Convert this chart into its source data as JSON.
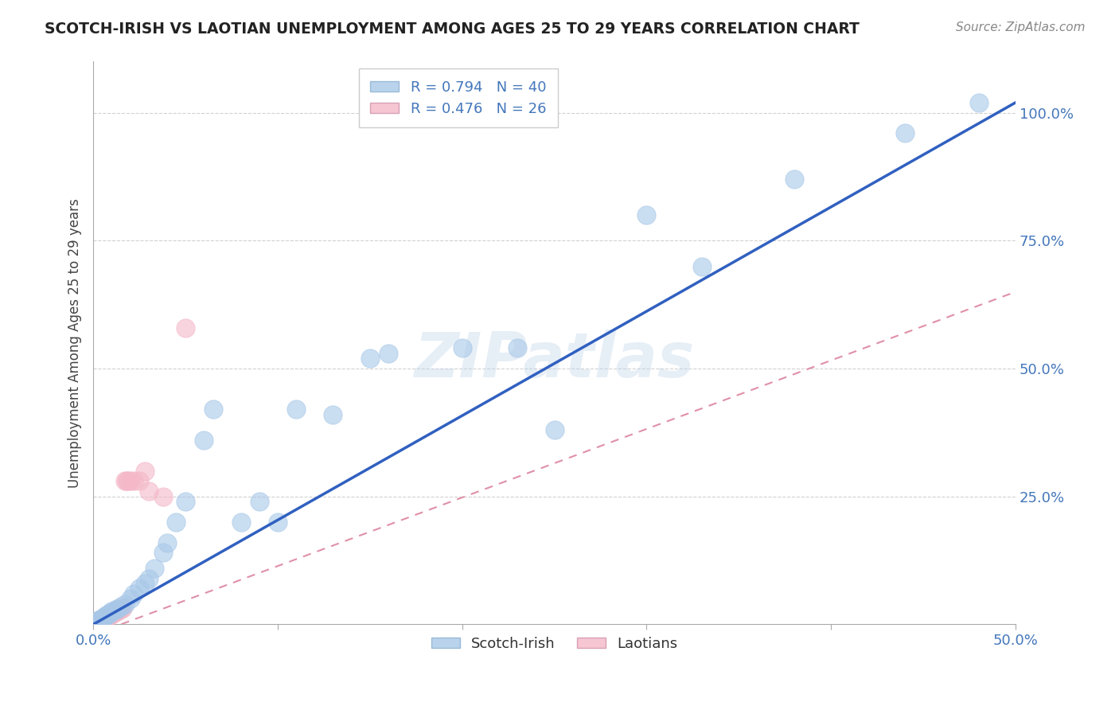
{
  "title": "SCOTCH-IRISH VS LAOTIAN UNEMPLOYMENT AMONG AGES 25 TO 29 YEARS CORRELATION CHART",
  "source": "Source: ZipAtlas.com",
  "xlabel": "",
  "ylabel": "Unemployment Among Ages 25 to 29 years",
  "xlim": [
    0.0,
    0.5
  ],
  "ylim": [
    0.0,
    1.1
  ],
  "xticks": [
    0.0,
    0.1,
    0.2,
    0.3,
    0.4,
    0.5
  ],
  "yticks": [
    0.25,
    0.5,
    0.75,
    1.0
  ],
  "xticklabels_show": [
    "0.0%",
    "50.0%"
  ],
  "xticklabels_pos": [
    0.0,
    0.5
  ],
  "yticklabels": [
    "25.0%",
    "50.0%",
    "75.0%",
    "100.0%"
  ],
  "scotch_irish_R": 0.794,
  "scotch_irish_N": 40,
  "laotian_R": 0.476,
  "laotian_N": 26,
  "scotch_irish_color": "#a8c8e8",
  "laotian_color": "#f4b8c8",
  "scotch_irish_line_color": "#3060c0",
  "laotian_line_color": "#e090a8",
  "watermark": "ZIPatlas",
  "scotch_irish_x": [
    0.002,
    0.003,
    0.004,
    0.005,
    0.006,
    0.007,
    0.008,
    0.009,
    0.01,
    0.012,
    0.013,
    0.015,
    0.017,
    0.02,
    0.022,
    0.025,
    0.028,
    0.03,
    0.033,
    0.038,
    0.04,
    0.045,
    0.05,
    0.06,
    0.065,
    0.08,
    0.09,
    0.1,
    0.11,
    0.13,
    0.15,
    0.16,
    0.2,
    0.23,
    0.25,
    0.3,
    0.33,
    0.38,
    0.44,
    0.48
  ],
  "scotch_irish_y": [
    0.005,
    0.008,
    0.01,
    0.012,
    0.015,
    0.018,
    0.02,
    0.022,
    0.025,
    0.028,
    0.03,
    0.035,
    0.04,
    0.05,
    0.06,
    0.07,
    0.08,
    0.09,
    0.11,
    0.14,
    0.16,
    0.2,
    0.24,
    0.36,
    0.42,
    0.2,
    0.24,
    0.2,
    0.42,
    0.41,
    0.52,
    0.53,
    0.54,
    0.54,
    0.38,
    0.8,
    0.7,
    0.87,
    0.96,
    1.02
  ],
  "laotian_x": [
    0.001,
    0.002,
    0.003,
    0.004,
    0.005,
    0.006,
    0.007,
    0.008,
    0.009,
    0.01,
    0.011,
    0.012,
    0.013,
    0.014,
    0.015,
    0.016,
    0.017,
    0.018,
    0.019,
    0.02,
    0.022,
    0.025,
    0.028,
    0.03,
    0.038,
    0.05
  ],
  "laotian_y": [
    0.002,
    0.004,
    0.006,
    0.008,
    0.01,
    0.012,
    0.014,
    0.016,
    0.018,
    0.02,
    0.022,
    0.024,
    0.026,
    0.028,
    0.03,
    0.032,
    0.28,
    0.28,
    0.28,
    0.28,
    0.28,
    0.28,
    0.3,
    0.26,
    0.25,
    0.58
  ],
  "scotch_irish_line_x": [
    0.0,
    0.5
  ],
  "scotch_irish_line_y": [
    0.0,
    1.02
  ],
  "laotian_line_x": [
    0.0,
    0.5
  ],
  "laotian_line_y": [
    -0.02,
    0.65
  ]
}
